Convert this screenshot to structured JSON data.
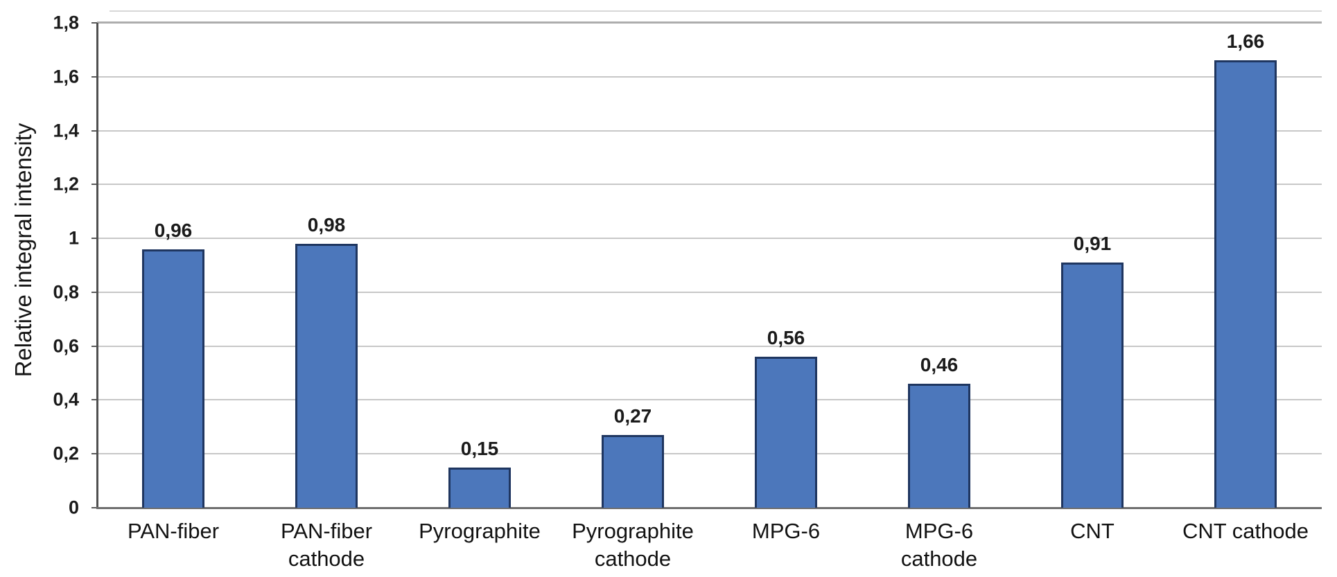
{
  "chart_data": {
    "type": "bar",
    "title": "",
    "xlabel": "",
    "ylabel": "Relative integral intensity",
    "ylim": [
      0,
      1.8
    ],
    "ytick_step": 0.2,
    "decimal_separator": ",",
    "grid": true,
    "legend": "none",
    "orientation": "vertical",
    "categories": [
      "PAN-fiber",
      "PAN-fiber cathode",
      "Pyrographite",
      "Pyrographite cathode",
      "MPG-6",
      "MPG-6 cathode",
      "CNT",
      "CNT cathode"
    ],
    "category_label_lines": [
      [
        "PAN-fiber"
      ],
      [
        "PAN-fiber",
        "cathode"
      ],
      [
        "Pyrographite"
      ],
      [
        "Pyrographite",
        "cathode"
      ],
      [
        "MPG-6"
      ],
      [
        "MPG-6",
        "cathode"
      ],
      [
        "CNT"
      ],
      [
        "CNT cathode"
      ]
    ],
    "values": [
      0.96,
      0.98,
      0.15,
      0.27,
      0.56,
      0.46,
      0.91,
      1.66
    ],
    "value_labels": [
      "0,96",
      "0,98",
      "0,15",
      "0,27",
      "0,56",
      "0,46",
      "0,91",
      "1,66"
    ],
    "ytick_labels": [
      "0",
      "0,2",
      "0,4",
      "0,6",
      "0,8",
      "1",
      "1,2",
      "1,4",
      "1,6",
      "1,8"
    ],
    "colors": {
      "bar_fill": "#4C77BB",
      "bar_border": "#1F3660",
      "gridline": "#C7C7C7",
      "top_gridline": "#ADADAD",
      "faint_top_border": "#D7D7D7",
      "y_axis": "#4F4F4F",
      "x_axis": "#6E6E6E",
      "tick": "#5A5A5A",
      "text": "#1b1b1b"
    }
  }
}
